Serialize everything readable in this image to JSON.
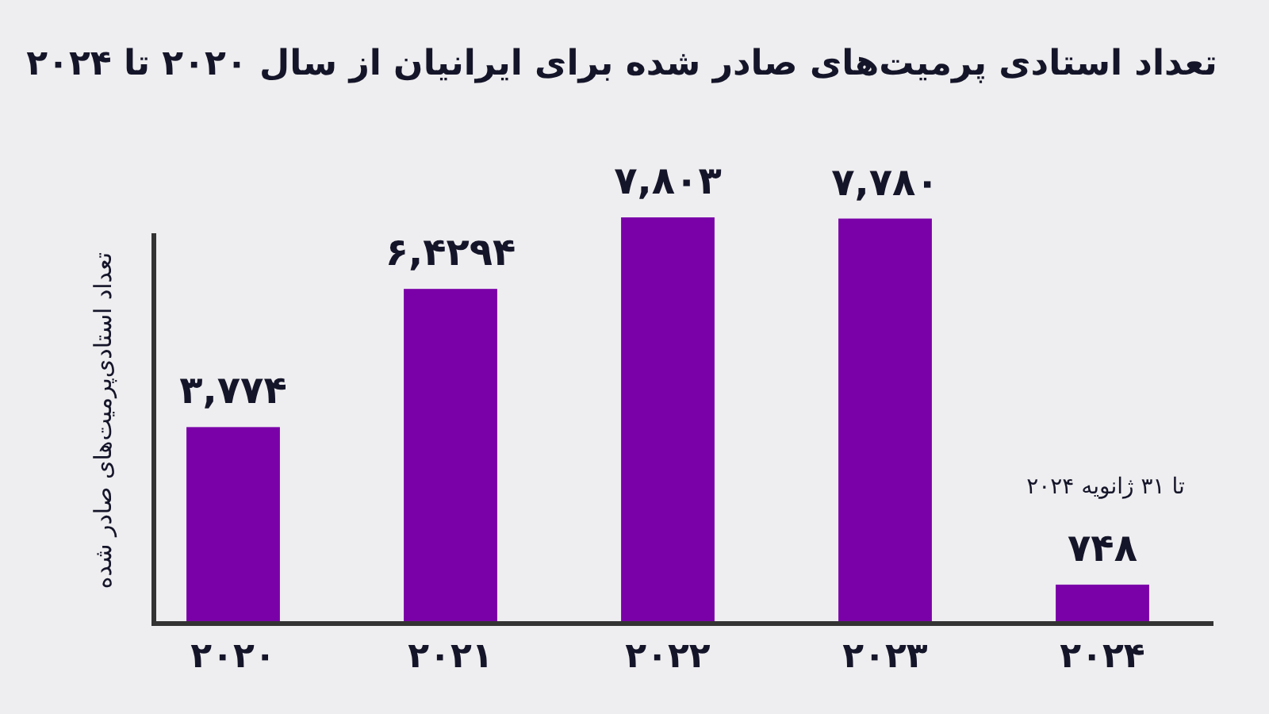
{
  "chart_data": {
    "type": "bar",
    "title": "تعداد استادی پرمیت‌های صادر شده برای ایرانیان از سال ۲۰۲۰ تا ۲۰۲۴",
    "ylabel": "تعداد استادی‌پرمیت‌های صادر شده",
    "categories": [
      "۲۰۲۰",
      "۲۰۲۱",
      "۲۰۲۲",
      "۲۰۲۳",
      "۲۰۲۴"
    ],
    "values": [
      3774,
      6429,
      7803,
      7780,
      748
    ],
    "value_labels": [
      "۳,۷۷۴",
      "۶,۴۲۹۴",
      "۷,۸۰۳",
      "۷,۷۸۰",
      "۷۴۸"
    ],
    "color": "#7a00a8",
    "annotations": [
      "تا ۳۱ ژانویه ۲۰۲۴"
    ],
    "tick_labels": "x"
  }
}
